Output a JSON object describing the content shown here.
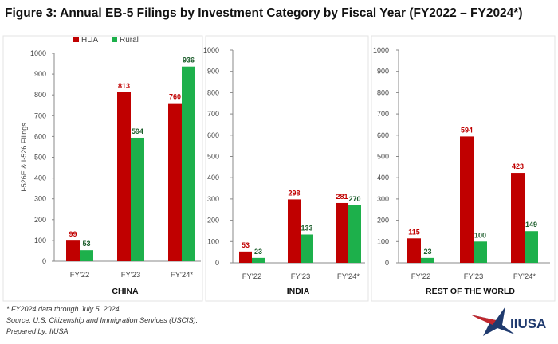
{
  "title": "Figure 3: Annual EB-5 Filings by Investment Category by Fiscal Year (FY2022 – FY2024*)",
  "footnotes": [
    "* FY2024 data through July 5, 2024",
    "Source: U.S. Citizenship and Immigration Services (USCIS).",
    "Prepared by: IIUSA"
  ],
  "logo": {
    "text": "IIUSA"
  },
  "colors": {
    "HUA": "#c00000",
    "Rural": "#1db04b"
  },
  "chart_data": [
    {
      "type": "bar",
      "title": "CHINA",
      "ylabel": "I-526E & I-526 Filings",
      "ylim": [
        0,
        1000
      ],
      "yticks": [
        0,
        100,
        200,
        300,
        400,
        500,
        600,
        700,
        800,
        900,
        1000
      ],
      "categories": [
        "FY'22",
        "FY'23",
        "FY'24*"
      ],
      "legend": "top-left",
      "series": [
        {
          "name": "HUA",
          "values": [
            99,
            813,
            760
          ]
        },
        {
          "name": "Rural",
          "values": [
            53,
            594,
            936
          ]
        }
      ]
    },
    {
      "type": "bar",
      "title": "INDIA",
      "ylim": [
        0,
        1000
      ],
      "yticks": [
        0,
        100,
        200,
        300,
        400,
        500,
        600,
        700,
        800,
        900,
        1000
      ],
      "categories": [
        "FY'22",
        "FY'23",
        "FY'24*"
      ],
      "series": [
        {
          "name": "HUA",
          "values": [
            53,
            298,
            281
          ]
        },
        {
          "name": "Rural",
          "values": [
            23,
            133,
            270
          ]
        }
      ]
    },
    {
      "type": "bar",
      "title": "REST OF THE WORLD",
      "ylim": [
        0,
        1000
      ],
      "yticks": [
        0,
        100,
        200,
        300,
        400,
        500,
        600,
        700,
        800,
        900,
        1000
      ],
      "categories": [
        "FY'22",
        "FY'23",
        "FY'24*"
      ],
      "series": [
        {
          "name": "HUA",
          "values": [
            115,
            594,
            423
          ]
        },
        {
          "name": "Rural",
          "values": [
            23,
            100,
            149
          ]
        }
      ]
    }
  ]
}
